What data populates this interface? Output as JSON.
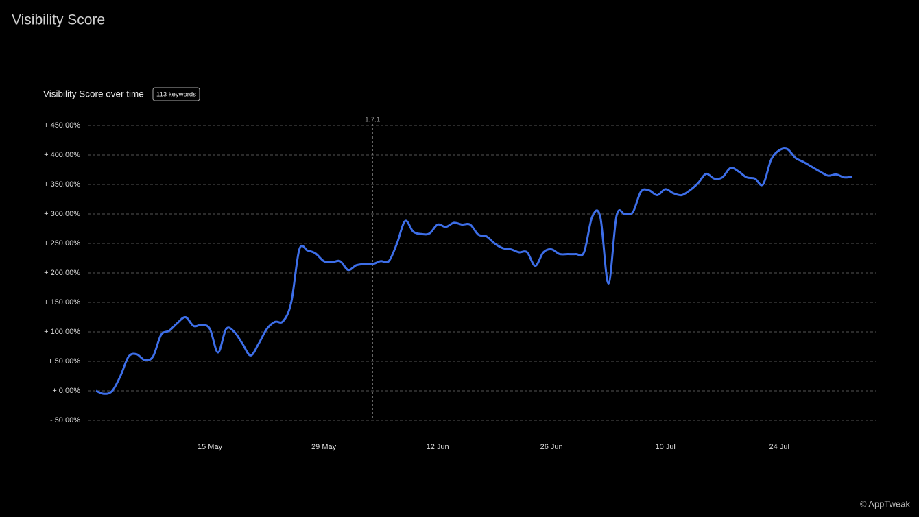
{
  "header": {
    "title": "Visibility Score"
  },
  "footer": {
    "text": "© AppTweak"
  },
  "chart_data": {
    "type": "line",
    "title": "Visibility Score over time",
    "badge": "113 keywords",
    "categories": [
      null,
      null,
      null,
      null,
      null,
      null,
      null,
      null,
      null,
      null,
      null,
      null,
      null,
      null,
      "15 May",
      null,
      null,
      null,
      null,
      null,
      null,
      null,
      null,
      null,
      null,
      null,
      null,
      null,
      "29 May",
      null,
      null,
      null,
      null,
      null,
      null,
      null,
      null,
      null,
      null,
      null,
      null,
      null,
      "12 Jun",
      null,
      null,
      null,
      null,
      null,
      null,
      null,
      null,
      null,
      null,
      null,
      null,
      null,
      "26 Jun",
      null,
      null,
      null,
      null,
      null,
      null,
      null,
      null,
      null,
      null,
      null,
      null,
      null,
      "10 Jul",
      null,
      null,
      null,
      null,
      null,
      null,
      null,
      null,
      null,
      null,
      null,
      null,
      null,
      "24 Jul",
      null,
      null,
      null,
      null,
      null,
      null,
      null,
      null,
      null
    ],
    "series": [
      {
        "name": "Visibility Score",
        "color": "#3d6ee8",
        "values": [
          0,
          -5,
          0,
          25,
          58,
          62,
          52,
          58,
          95,
          102,
          115,
          125,
          110,
          112,
          105,
          65,
          105,
          100,
          80,
          60,
          80,
          105,
          117,
          118,
          150,
          240,
          238,
          233,
          220,
          218,
          220,
          205,
          213,
          215,
          215,
          220,
          220,
          250,
          288,
          270,
          266,
          267,
          282,
          278,
          285,
          282,
          282,
          265,
          262,
          250,
          242,
          240,
          235,
          235,
          212,
          235,
          240,
          232,
          232,
          232,
          235,
          295,
          295,
          182,
          297,
          300,
          303,
          338,
          340,
          332,
          342,
          335,
          332,
          340,
          352,
          368,
          360,
          362,
          378,
          372,
          362,
          360,
          350,
          392,
          408,
          410,
          395,
          388,
          380,
          372,
          365,
          367,
          362,
          363
        ]
      }
    ],
    "ylim": [
      -50,
      450
    ],
    "yticks": [
      {
        "value": -50,
        "label": "- 50.00%"
      },
      {
        "value": 0,
        "label": "+ 0.00%"
      },
      {
        "value": 50,
        "label": "+ 50.00%"
      },
      {
        "value": 100,
        "label": "+ 100.00%"
      },
      {
        "value": 150,
        "label": "+ 150.00%"
      },
      {
        "value": 200,
        "label": "+ 200.00%"
      },
      {
        "value": 250,
        "label": "+ 250.00%"
      },
      {
        "value": 300,
        "label": "+ 300.00%"
      },
      {
        "value": 350,
        "label": "+ 350.00%"
      },
      {
        "value": 400,
        "label": "+ 400.00%"
      },
      {
        "value": 450,
        "label": "+ 450.00%"
      }
    ],
    "grid": true,
    "annotations": [
      {
        "label": "1.7.1",
        "index": 34
      }
    ]
  }
}
